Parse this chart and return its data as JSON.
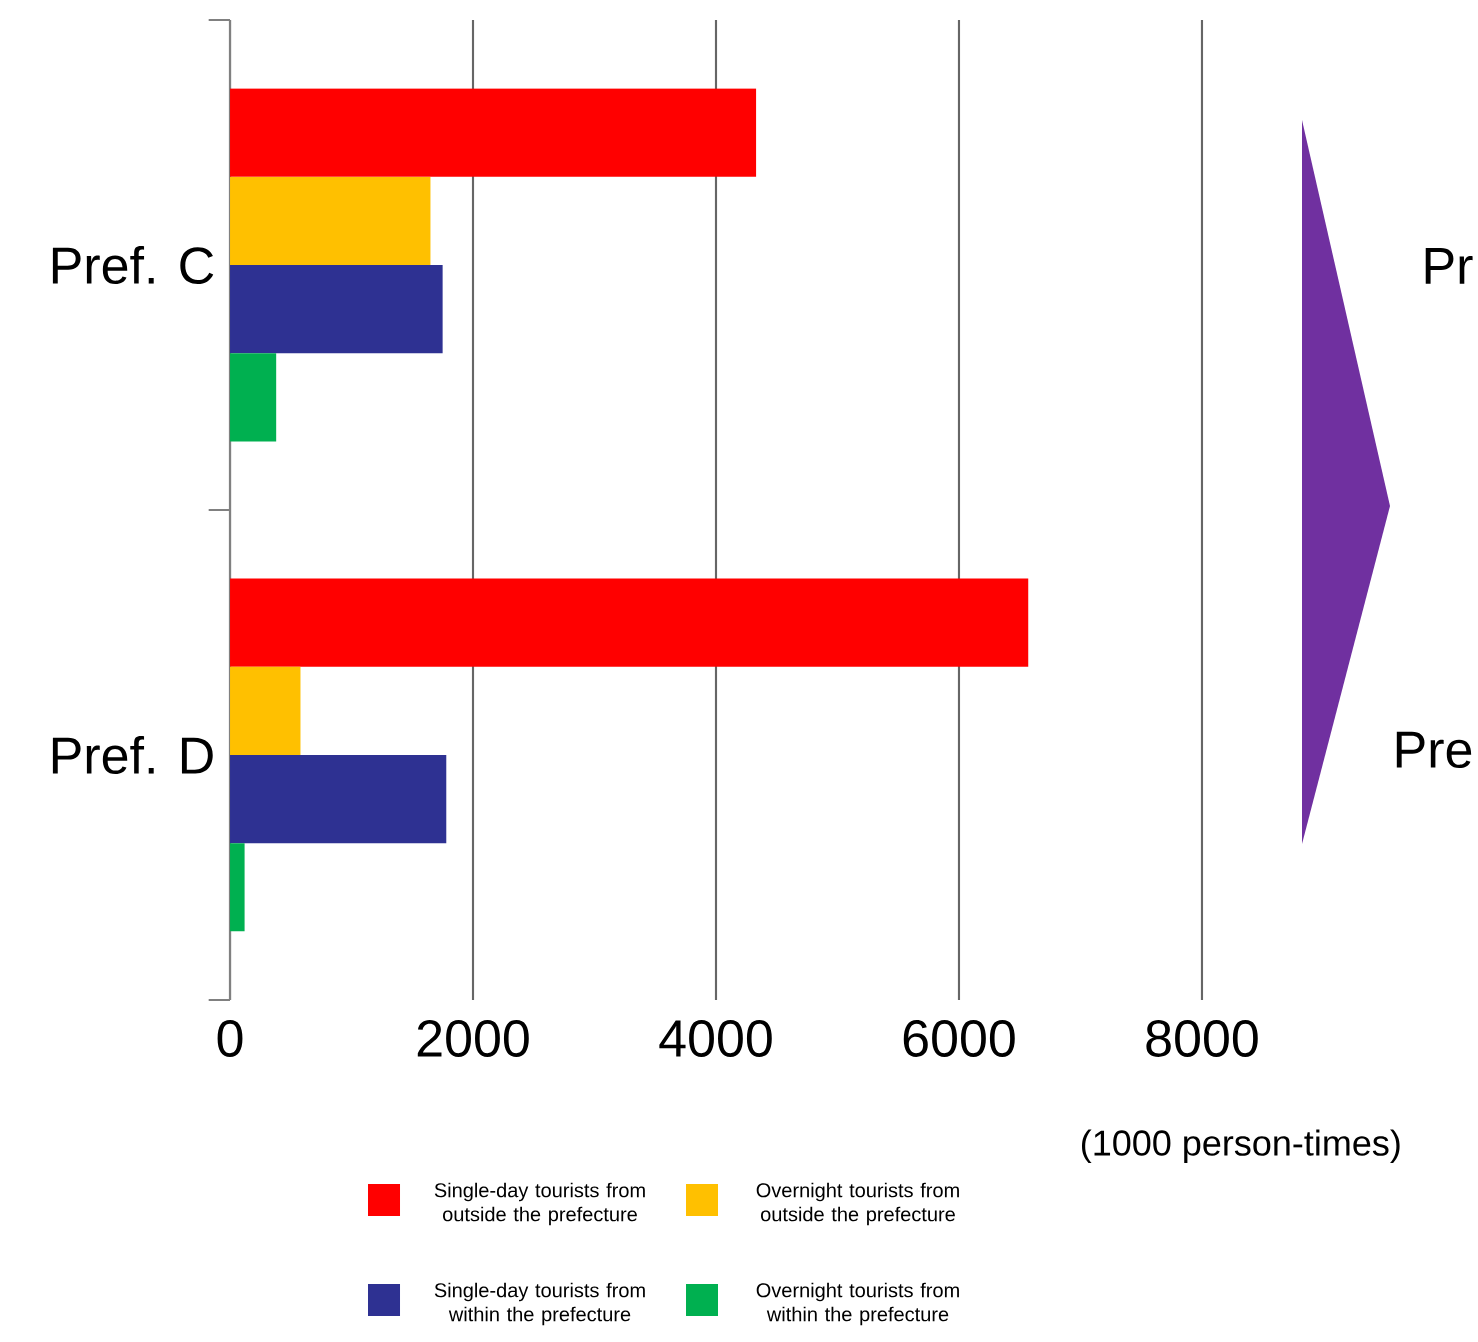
{
  "chart_data": {
    "type": "bar",
    "orientation": "horizontal",
    "categories": [
      "Pref. C",
      "Pref. D"
    ],
    "series": [
      {
        "name": "Single-day tourists from outside the prefecture",
        "color": "#ff0000",
        "values": [
          4330,
          6570
        ]
      },
      {
        "name": "Overnight tourists from outside the prefecture",
        "color": "#ffc000",
        "values": [
          1650,
          580
        ]
      },
      {
        "name": "Single-day tourists from within the prefecture",
        "color": "#2e3192",
        "values": [
          1750,
          1780
        ]
      },
      {
        "name": "Overnight tourists from within the prefecture",
        "color": "#00b050",
        "values": [
          380,
          120
        ]
      }
    ],
    "xlim": [
      0,
      8000
    ],
    "xticks": [
      0,
      2000,
      4000,
      6000,
      8000
    ],
    "xlabel": "(1000 person-times)",
    "grid": "x",
    "legend": "bottom",
    "annotations": [
      "Pr",
      "Pre"
    ]
  }
}
